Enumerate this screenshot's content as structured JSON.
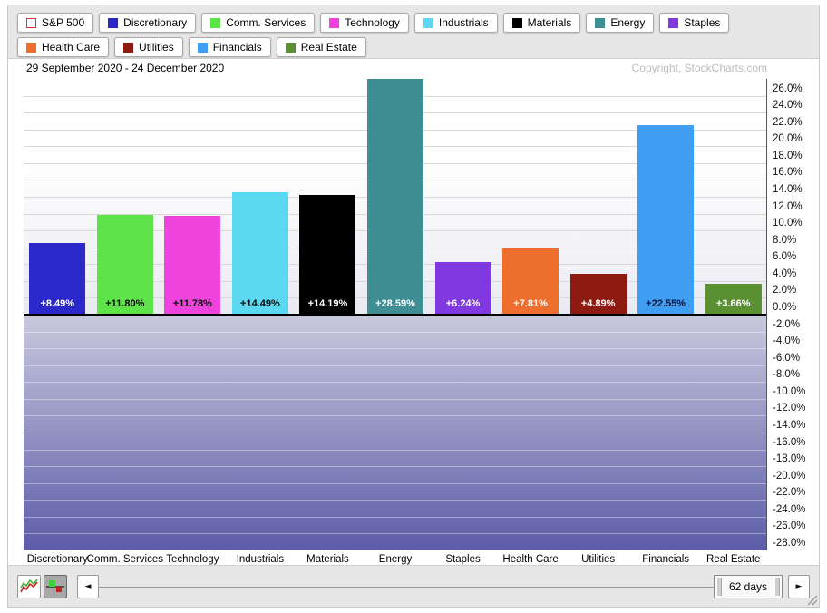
{
  "header": {
    "date_range": "29 September 2020 - 24 December 2020",
    "copyright": "Copyright, StockCharts.com"
  },
  "legend": {
    "buttons": [
      {
        "label": "S&P 500",
        "color": "#ffffff",
        "outline_color": "#e03228"
      },
      {
        "label": "Discretionary",
        "color": "#2a28c8"
      },
      {
        "label": "Comm. Services",
        "color": "#5ee348"
      },
      {
        "label": "Technology",
        "color": "#ee44dd"
      },
      {
        "label": "Industrials",
        "color": "#5cd9f2"
      },
      {
        "label": "Materials",
        "color": "#000000"
      },
      {
        "label": "Energy",
        "color": "#3e8e94"
      },
      {
        "label": "Staples",
        "color": "#8038e0"
      },
      {
        "label": "Health Care",
        "color": "#ee6f2d"
      },
      {
        "label": "Utilities",
        "color": "#8e1b12"
      },
      {
        "label": "Financials",
        "color": "#3f9ef2"
      },
      {
        "label": "Real Estate",
        "color": "#5a8f32"
      }
    ]
  },
  "chart_data": {
    "type": "bar",
    "title": "29 September 2020 - 24 December 2020",
    "categories": [
      "Discretionary",
      "Comm. Services",
      "Technology",
      "Industrials",
      "Materials",
      "Energy",
      "Staples",
      "Health Care",
      "Utilities",
      "Financials",
      "Real Estate"
    ],
    "values": [
      8.49,
      11.8,
      11.78,
      14.49,
      14.19,
      28.59,
      6.24,
      7.81,
      4.89,
      22.55,
      3.66
    ],
    "value_labels": [
      "+8.49%",
      "+11.80%",
      "+11.78%",
      "+14.49%",
      "+14.19%",
      "+28.59%",
      "+6.24%",
      "+7.81%",
      "+4.89%",
      "+22.55%",
      "+3.66%"
    ],
    "bar_colors": [
      "#2a28c8",
      "#5ee348",
      "#ee44dd",
      "#5cd9f2",
      "#000000",
      "#3e8e94",
      "#8038e0",
      "#ee6f2d",
      "#8e1b12",
      "#3f9ef2",
      "#5a8f32"
    ],
    "value_label_colors": [
      "#ffffff",
      "#0a0a0a",
      "#0a0a0a",
      "#0a0a0a",
      "#ffffff",
      "#ffffff",
      "#ffffff",
      "#ffffff",
      "#ffffff",
      "#0b1030",
      "#ffffff"
    ],
    "xlabel": "",
    "ylabel": "",
    "ylim": [
      -28,
      28
    ],
    "ytick_step": 2,
    "ytick_labels": [
      "26.0%",
      "24.0%",
      "22.0%",
      "20.0%",
      "18.0%",
      "16.0%",
      "14.0%",
      "12.0%",
      "10.0%",
      "8.0%",
      "6.0%",
      "4.0%",
      "2.0%",
      "0.0%",
      "-2.0%",
      "-4.0%",
      "-6.0%",
      "-8.0%",
      "-10.0%",
      "-12.0%",
      "-14.0%",
      "-16.0%",
      "-18.0%",
      "-20.0%",
      "-22.0%",
      "-24.0%",
      "-26.0%",
      "-28.0%"
    ],
    "grid": true,
    "legend_position": "top",
    "negative_region_shaded": true
  },
  "toolbar": {
    "range_label": "62 days",
    "left_arrow": "◄",
    "right_arrow": "►"
  }
}
